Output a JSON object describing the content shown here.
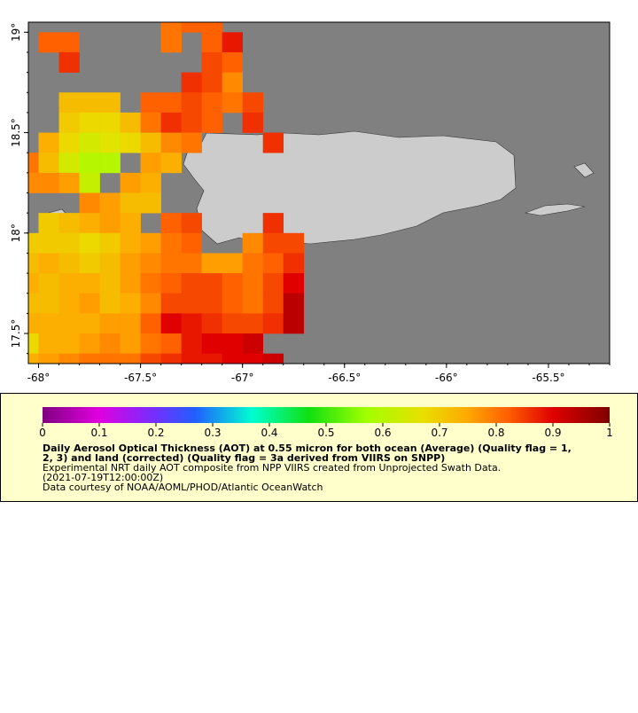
{
  "chart_data": {
    "type": "grid-map",
    "xlim": [
      -68.05,
      -65.2
    ],
    "ylim": [
      17.35,
      19.05
    ],
    "xticks": [
      {
        "value": -68,
        "label": "-68°"
      },
      {
        "value": -67.5,
        "label": "-67.5°"
      },
      {
        "value": -67,
        "label": "-67°"
      },
      {
        "value": -66.5,
        "label": "-66.5°"
      },
      {
        "value": -66,
        "label": "-66°"
      },
      {
        "value": -65.5,
        "label": "-65.5°"
      }
    ],
    "yticks": [
      {
        "value": 19,
        "label": "19°"
      },
      {
        "value": 18.5,
        "label": "18.5°"
      },
      {
        "value": 18,
        "label": "18°"
      },
      {
        "value": 17.5,
        "label": "17.5°"
      }
    ],
    "lon_edges": [
      -68.1,
      -68.0,
      -67.9,
      -67.8,
      -67.7,
      -67.6,
      -67.5,
      -67.4,
      -67.3,
      -67.2,
      -67.1,
      -67.0,
      -66.9,
      -66.8,
      -66.7
    ],
    "lat_edges": [
      19.1,
      19.0,
      18.9,
      18.8,
      18.7,
      18.6,
      18.5,
      18.4,
      18.3,
      18.2,
      18.1,
      18.0,
      17.9,
      17.8,
      17.7,
      17.6,
      17.5,
      17.4,
      17.3
    ],
    "values": [
      [
        null,
        null,
        null,
        null,
        null,
        null,
        null,
        0.8,
        0.82,
        0.82,
        null,
        null,
        null,
        null
      ],
      [
        null,
        0.82,
        0.82,
        null,
        null,
        null,
        null,
        0.8,
        null,
        0.82,
        0.88,
        null,
        null,
        null
      ],
      [
        null,
        null,
        0.86,
        null,
        null,
        null,
        null,
        null,
        null,
        0.84,
        0.82,
        null,
        null,
        null
      ],
      [
        null,
        null,
        null,
        null,
        null,
        null,
        null,
        null,
        0.86,
        0.84,
        0.78,
        null,
        null,
        null
      ],
      [
        null,
        null,
        0.72,
        0.72,
        0.72,
        null,
        0.82,
        0.82,
        0.84,
        0.82,
        0.8,
        0.84,
        null,
        null
      ],
      [
        null,
        null,
        0.7,
        0.68,
        0.68,
        0.72,
        0.8,
        0.86,
        0.84,
        0.82,
        null,
        0.86,
        null,
        null
      ],
      [
        null,
        0.74,
        0.68,
        0.64,
        0.66,
        0.68,
        0.72,
        0.78,
        0.8,
        null,
        null,
        null,
        0.86,
        null
      ],
      [
        0.8,
        0.72,
        0.64,
        0.6,
        0.6,
        null,
        0.76,
        0.74,
        null,
        null,
        null,
        null,
        null,
        null
      ],
      [
        0.78,
        0.78,
        0.76,
        0.62,
        null,
        0.76,
        0.74,
        null,
        null,
        null,
        null,
        null,
        null,
        null
      ],
      [
        null,
        null,
        null,
        0.78,
        0.76,
        0.72,
        0.72,
        null,
        null,
        null,
        null,
        null,
        null,
        null
      ],
      [
        null,
        0.7,
        0.72,
        0.74,
        0.76,
        0.74,
        null,
        0.82,
        0.84,
        null,
        null,
        null,
        0.86,
        null
      ],
      [
        0.7,
        0.7,
        0.7,
        0.68,
        0.7,
        0.74,
        0.76,
        0.8,
        0.82,
        null,
        null,
        0.78,
        0.84,
        0.84
      ],
      [
        0.72,
        0.74,
        0.72,
        0.7,
        0.72,
        0.76,
        0.78,
        0.8,
        0.8,
        0.76,
        0.76,
        0.8,
        0.82,
        0.86
      ],
      [
        0.74,
        0.72,
        0.74,
        0.74,
        0.72,
        0.76,
        0.8,
        0.82,
        0.84,
        0.84,
        0.82,
        0.8,
        0.84,
        0.9
      ],
      [
        0.72,
        0.72,
        0.74,
        0.76,
        0.72,
        0.74,
        0.78,
        0.84,
        0.84,
        0.84,
        0.82,
        0.8,
        0.84,
        0.94
      ],
      [
        0.74,
        0.74,
        0.74,
        0.74,
        0.76,
        0.76,
        0.82,
        0.9,
        0.88,
        0.86,
        0.84,
        0.84,
        0.86,
        0.94
      ],
      [
        0.68,
        0.74,
        0.74,
        0.76,
        0.78,
        0.76,
        0.8,
        0.82,
        0.88,
        0.9,
        0.9,
        0.92,
        null,
        null
      ],
      [
        0.74,
        0.76,
        0.78,
        0.8,
        0.8,
        0.8,
        0.84,
        0.86,
        0.88,
        0.88,
        0.9,
        0.9,
        0.92,
        null
      ]
    ],
    "colorbar_range": [
      0,
      1
    ],
    "colorbar_ticks": [
      0,
      0.1,
      0.2,
      0.3,
      0.4,
      0.5,
      0.6,
      0.7,
      0.8,
      0.9,
      1
    ],
    "colorscale": [
      [
        0,
        "#800080"
      ],
      [
        0.1,
        "#e000e0"
      ],
      [
        0.2,
        "#7030ff"
      ],
      [
        0.27,
        "#2060ff"
      ],
      [
        0.37,
        "#00ffd0"
      ],
      [
        0.47,
        "#10e010"
      ],
      [
        0.57,
        "#a0ff00"
      ],
      [
        0.67,
        "#e8e000"
      ],
      [
        0.75,
        "#ffa800"
      ],
      [
        0.82,
        "#ff6000"
      ],
      [
        0.9,
        "#e00000"
      ],
      [
        1,
        "#800000"
      ]
    ],
    "legend_title": [
      "Daily Aerosol Optical Thickness (AOT) at 0.55 micron for both ocean (Average) (Quality flag = 1,",
      "2, 3) and land (corrected) (Quality flag = 3a derived from VIIRS on SNPP)"
    ],
    "legend_lines": [
      "Experimental NRT daily AOT composite from NPP VIIRS created from Unprojected Swath Data.",
      "(2021-07-19T12:00:00Z)",
      "Data courtesy of NOAA/AOML/PHOD/Atlantic OceanWatch"
    ]
  }
}
